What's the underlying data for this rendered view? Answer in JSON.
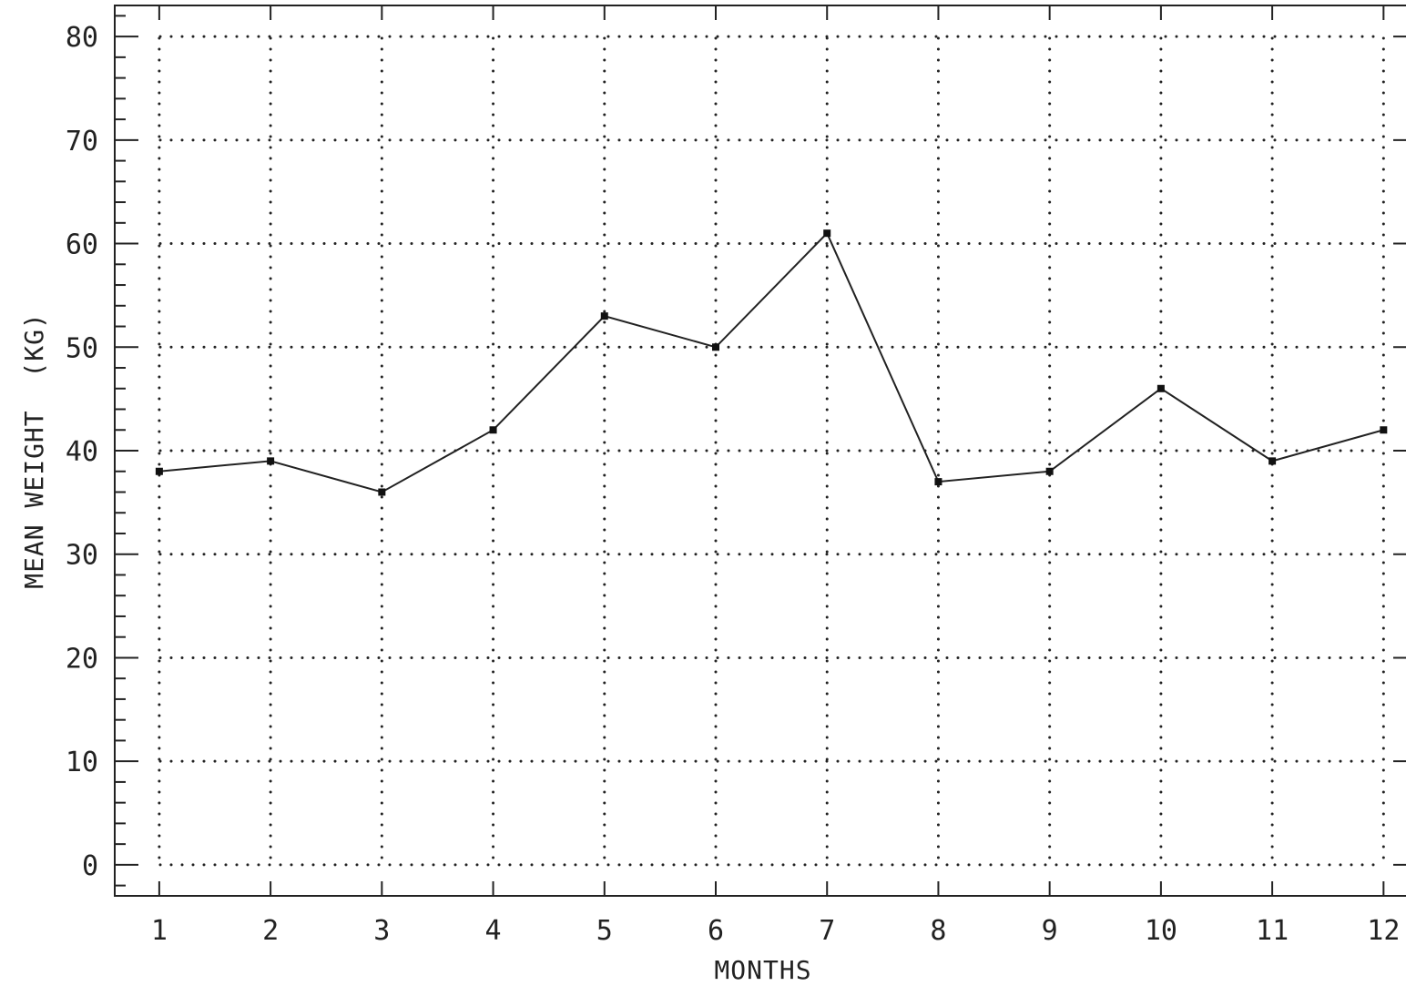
{
  "chart_data": {
    "type": "line",
    "title": "",
    "xlabel": "MONTHS",
    "ylabel": "MEAN WEIGHT  (KG)",
    "x": [
      1,
      2,
      3,
      4,
      5,
      6,
      7,
      8,
      9,
      10,
      11,
      12
    ],
    "x_tick_labels": [
      "1",
      "2",
      "3",
      "4",
      "5",
      "6",
      "7",
      "8",
      "9",
      "10",
      "11",
      "12"
    ],
    "y_tick_labels": [
      "0",
      "10",
      "20",
      "30",
      "40",
      "50",
      "60",
      "70",
      "80"
    ],
    "y_ticks": [
      0,
      10,
      20,
      30,
      40,
      50,
      60,
      70,
      80
    ],
    "series": [
      {
        "values": [
          38,
          39,
          36,
          42,
          53,
          50,
          61,
          37,
          38,
          46,
          39,
          42
        ]
      }
    ],
    "xlim": [
      0.6,
      12.3
    ],
    "ylim": [
      -3,
      83
    ],
    "grid": true,
    "grid_style": "dotted",
    "legend": "none",
    "marker": "square",
    "line_color": "#222222"
  }
}
